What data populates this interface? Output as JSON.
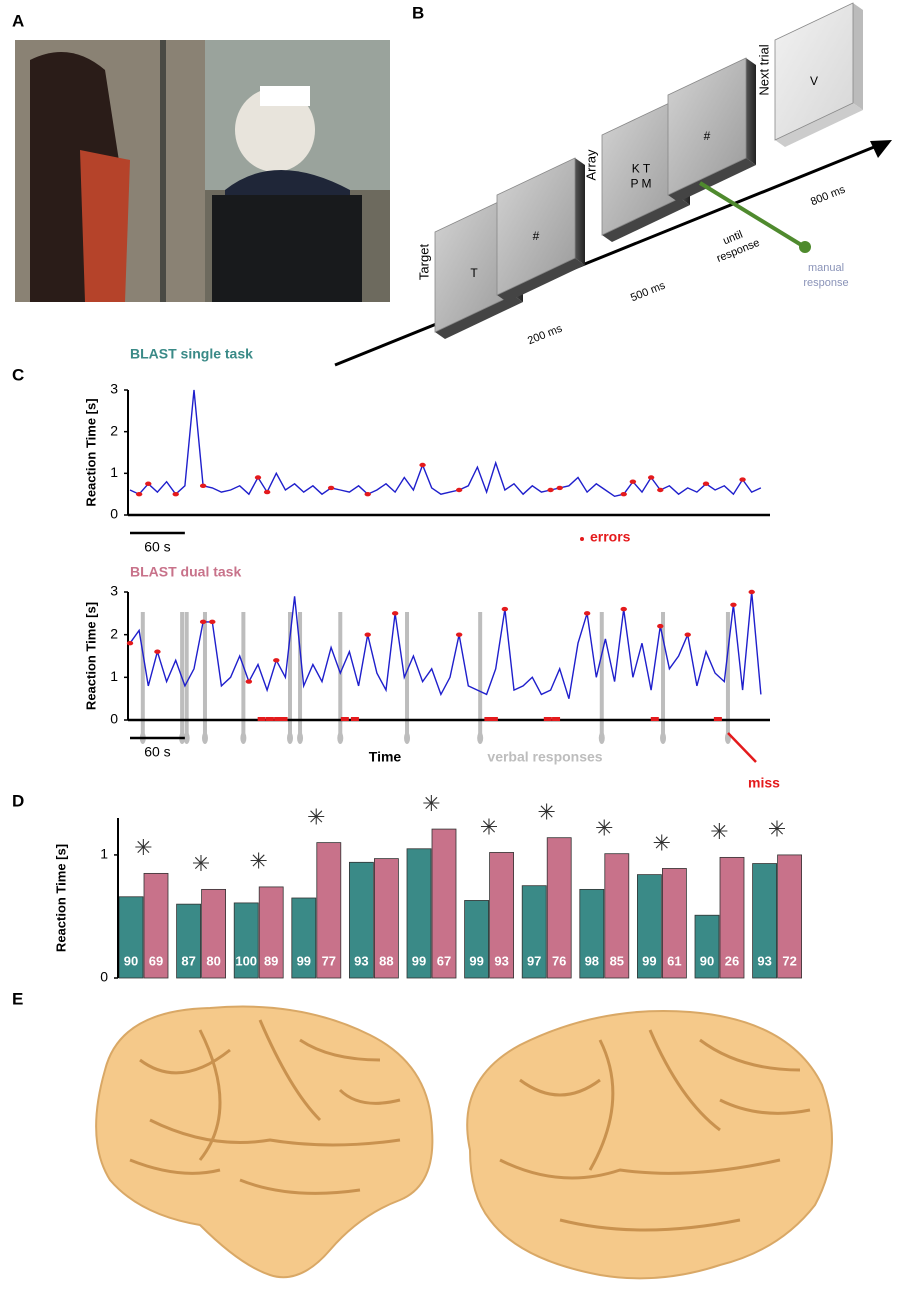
{
  "panels": {
    "a": "A",
    "b": "B",
    "c": "C",
    "d": "D",
    "e": "E"
  },
  "diagram": {
    "screens": [
      {
        "caption": "Target",
        "lines": [
          "T"
        ]
      },
      {
        "lines": [
          "#"
        ]
      },
      {
        "caption": "Array",
        "lines": [
          "K T",
          "P M"
        ]
      },
      {
        "lines": [
          "#"
        ]
      },
      {
        "caption": "Next trial",
        "lines": [
          "V"
        ]
      }
    ],
    "durations": [
      [
        "200 ms"
      ],
      [
        "500 ms"
      ],
      [
        "until",
        "response"
      ],
      [
        "800 ms"
      ]
    ],
    "response": [
      "manual",
      "response"
    ]
  },
  "chart_data": [
    {
      "type": "line",
      "title": "BLAST single task",
      "title_color": "#3a8a87",
      "y_label": "Reaction Time [s]",
      "x": [
        0,
        10,
        20,
        30,
        40,
        50,
        60,
        70,
        80,
        90,
        100,
        110,
        120,
        130,
        140,
        150,
        160,
        170,
        180,
        190,
        200,
        210,
        220,
        230,
        240,
        250,
        260,
        270,
        280,
        290,
        300,
        310,
        320,
        330,
        340,
        350,
        360,
        370,
        380,
        390,
        400,
        410,
        420,
        430,
        440,
        450,
        460,
        470,
        480,
        490,
        500,
        510,
        520,
        530,
        540,
        550,
        560,
        570,
        580,
        590,
        600,
        610,
        620,
        630,
        640,
        650,
        660,
        670,
        680,
        690
      ],
      "xlim": [
        0,
        700
      ],
      "ylim": [
        0,
        3
      ],
      "yticks": [
        0,
        1,
        2,
        3
      ],
      "series": [
        {
          "color": "#1f1fcc",
          "values": [
            0.6,
            0.5,
            0.75,
            0.55,
            0.8,
            0.5,
            0.7,
            3.0,
            0.7,
            0.65,
            0.55,
            0.6,
            0.7,
            0.5,
            0.9,
            0.55,
            1.0,
            0.6,
            0.75,
            0.55,
            0.7,
            0.5,
            0.65,
            0.6,
            0.55,
            0.7,
            0.5,
            0.6,
            0.75,
            0.55,
            0.9,
            0.6,
            1.2,
            0.65,
            0.5,
            0.55,
            0.6,
            0.7,
            1.15,
            0.55,
            1.25,
            0.6,
            0.75,
            0.5,
            0.7,
            0.55,
            0.6,
            0.65,
            0.7,
            0.9,
            0.55,
            0.75,
            0.6,
            0.45,
            0.5,
            0.8,
            0.55,
            0.9,
            0.6,
            0.7,
            0.5,
            0.65,
            0.55,
            0.75,
            0.6,
            0.7,
            0.5,
            0.85,
            0.55,
            0.65
          ]
        },
        {
          "name": "errors",
          "type": "scatter",
          "color": "#e41a1c",
          "x": [
            10,
            20,
            50,
            80,
            140,
            150,
            220,
            260,
            320,
            360,
            460,
            470,
            540,
            550,
            570,
            580,
            630,
            670
          ],
          "values": [
            0.5,
            0.75,
            0.5,
            0.7,
            0.9,
            0.55,
            0.65,
            0.5,
            1.2,
            0.6,
            0.6,
            0.65,
            0.5,
            0.8,
            0.9,
            0.6,
            0.75,
            0.85
          ]
        }
      ],
      "scale_bar": {
        "value": 60,
        "label": "60 s"
      }
    },
    {
      "type": "line",
      "title": "BLAST dual task",
      "title_color": "#c8728a",
      "y_label": "Reaction Time [s]",
      "x_label": "Time",
      "x": [
        0,
        10,
        20,
        30,
        40,
        50,
        60,
        70,
        80,
        90,
        100,
        110,
        120,
        130,
        140,
        150,
        160,
        170,
        180,
        190,
        200,
        210,
        220,
        230,
        240,
        250,
        260,
        270,
        280,
        290,
        300,
        310,
        320,
        330,
        340,
        350,
        360,
        370,
        380,
        390,
        400,
        410,
        420,
        430,
        440,
        450,
        460,
        470,
        480,
        490,
        500,
        510,
        520,
        530,
        540,
        550,
        560,
        570,
        580,
        590,
        600,
        610,
        620,
        630,
        640,
        650,
        660,
        670,
        680,
        690
      ],
      "xlim": [
        0,
        700
      ],
      "ylim": [
        0,
        3
      ],
      "yticks": [
        0,
        1,
        2,
        3
      ],
      "series": [
        {
          "color": "#1f1fcc",
          "values": [
            1.8,
            2.1,
            0.8,
            1.6,
            0.9,
            1.4,
            0.8,
            1.2,
            2.3,
            2.3,
            0.8,
            1.0,
            1.5,
            0.9,
            1.3,
            0.7,
            1.4,
            1.0,
            2.9,
            0.8,
            1.3,
            0.9,
            1.7,
            1.1,
            1.6,
            0.8,
            2.0,
            1.1,
            0.7,
            2.5,
            1.0,
            1.5,
            0.9,
            1.2,
            0.6,
            1.0,
            2.0,
            0.8,
            0.7,
            0.6,
            1.2,
            2.6,
            0.7,
            0.8,
            1.0,
            0.6,
            0.7,
            1.2,
            0.5,
            1.8,
            2.5,
            1.0,
            1.9,
            0.9,
            2.6,
            1.0,
            1.8,
            0.7,
            2.2,
            1.2,
            1.5,
            2.0,
            0.8,
            1.6,
            1.1,
            0.9,
            2.7,
            0.7,
            3.0,
            0.6
          ]
        },
        {
          "name": "errors",
          "type": "scatter",
          "color": "#e41a1c",
          "x": [
            0,
            30,
            80,
            90,
            130,
            160,
            260,
            290,
            360,
            410,
            500,
            540,
            580,
            610,
            660,
            680
          ],
          "values": [
            1.8,
            1.6,
            2.3,
            2.3,
            0.9,
            1.4,
            2.0,
            2.5,
            2.0,
            2.6,
            2.5,
            2.6,
            2.2,
            2.0,
            2.7,
            3.0
          ]
        }
      ],
      "verbal_responses": {
        "name": "verbal responses",
        "color": "#bdbdbd",
        "x": [
          14,
          57,
          62,
          82,
          124,
          175,
          186,
          230,
          303,
          383,
          516,
          583,
          654
        ]
      },
      "misses": {
        "name": "miss",
        "color": "#e41a1c",
        "x": [
          144,
          153,
          162,
          168,
          235,
          246,
          392,
          398,
          457,
          466,
          574,
          643
        ]
      },
      "scale_bar": {
        "value": 60,
        "label": "60 s"
      }
    },
    {
      "type": "bar",
      "y_label": "Reaction Time [s]",
      "categories": [
        null,
        null,
        null,
        null,
        null,
        null,
        null,
        null,
        null,
        null,
        null,
        null
      ],
      "ylim": [
        0,
        1.3
      ],
      "yticks": [
        0,
        1
      ],
      "series": [
        {
          "color": "#3a8a87",
          "values": [
            0.66,
            0.6,
            0.61,
            0.65,
            0.94,
            1.05,
            0.63,
            0.75,
            0.72,
            0.84,
            0.51,
            0.93
          ],
          "accuracy": [
            90,
            87,
            100,
            99,
            93,
            99,
            99,
            97,
            98,
            99,
            90,
            93
          ]
        },
        {
          "color": "#c8728a",
          "values": [
            0.85,
            0.72,
            0.74,
            1.1,
            0.97,
            1.21,
            1.02,
            1.14,
            1.01,
            0.89,
            0.98,
            1.0
          ],
          "accuracy": [
            69,
            80,
            89,
            77,
            88,
            67,
            93,
            76,
            85,
            61,
            26,
            72
          ]
        }
      ],
      "significance": [
        "✳",
        "✳",
        "✳",
        "✳",
        null,
        "✳",
        "✳",
        "✳",
        "✳",
        "✳",
        "✳",
        "✳"
      ]
    }
  ]
}
